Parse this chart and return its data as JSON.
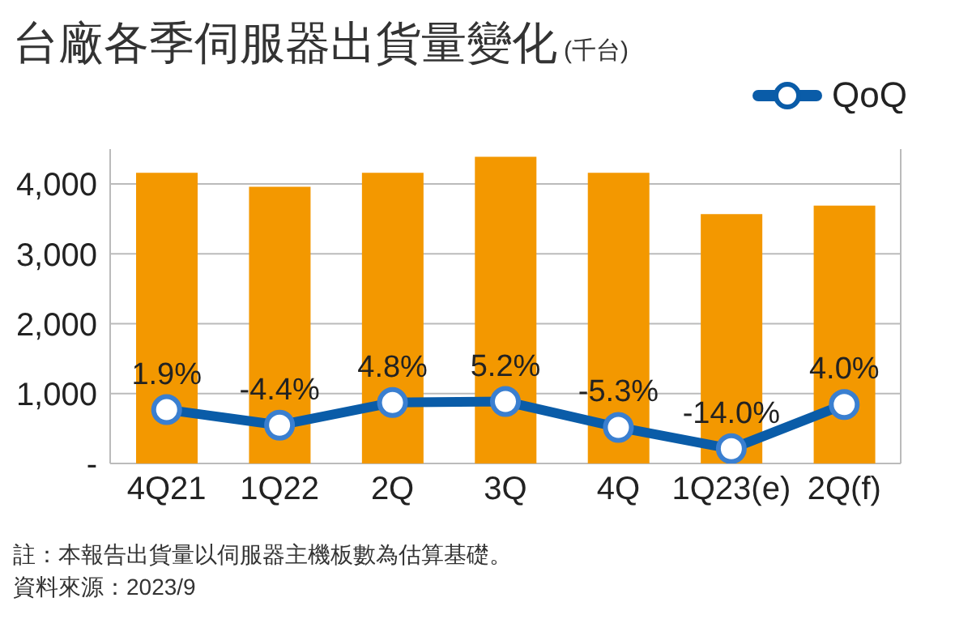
{
  "chart_data": {
    "type": "bar",
    "title": "台廠各季伺服器出貨量變化",
    "subtitle": "(千台)",
    "categories": [
      "4Q21",
      "1Q22",
      "2Q",
      "3Q",
      "4Q",
      "1Q23(e)",
      "2Q(f)"
    ],
    "series": [
      {
        "color": "#f39800",
        "values": [
          4160,
          3960,
          4160,
          4390,
          4160,
          3570,
          3690
        ]
      },
      {
        "type": "line",
        "name": "QoQ",
        "axis": "y2",
        "color": "#0a5ca8",
        "marker": "circle",
        "values": [
          1.9,
          -4.4,
          4.8,
          5.2,
          -5.3,
          -14.0,
          4.0
        ],
        "value_labels": [
          "1.9%",
          "-4.4%",
          "4.8%",
          "5.2%",
          "-5.3%",
          "-14.0%",
          "4.0%"
        ]
      }
    ],
    "ylim": [
      0,
      4500
    ],
    "yticks": [
      {
        "value": 0,
        "label": "-"
      },
      {
        "value": 1000,
        "label": "1,000"
      },
      {
        "value": 2000,
        "label": "2,000"
      },
      {
        "value": 3000,
        "label": "3,000"
      },
      {
        "value": 4000,
        "label": "4,000"
      }
    ],
    "y2lim": [
      -20,
      108
    ],
    "grid": "y",
    "legend": "top right",
    "annotations": [
      "註：本報告出貨量以伺服器主機板數為估算基礎。",
      "資料來源：2023/9"
    ]
  }
}
